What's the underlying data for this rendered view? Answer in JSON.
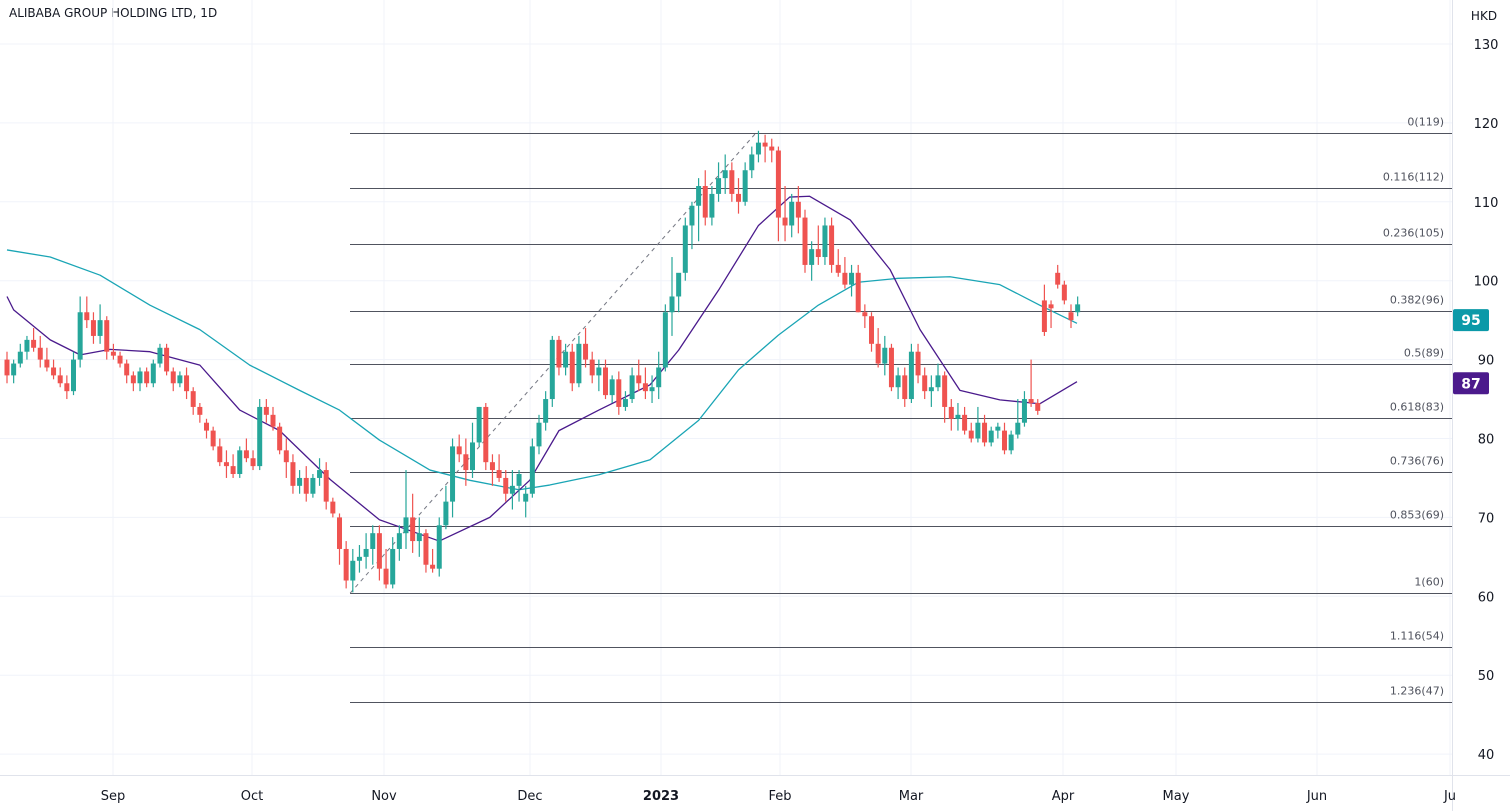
{
  "chart_data": {
    "type": "candlestick",
    "title": "ALIBABA GROUP HOLDING LTD, 1D",
    "currency": "HKD",
    "ylim": [
      35,
      134
    ],
    "y_ticks": [
      130,
      120,
      110,
      100,
      90,
      80,
      70,
      60,
      50,
      40
    ],
    "x_ticks": [
      "Sep",
      "Oct",
      "Nov",
      "Dec",
      "2023",
      "Feb",
      "Mar",
      "Apr",
      "May",
      "Jun",
      "Ju"
    ],
    "colors": {
      "up": "#26a69a",
      "down": "#ef5350",
      "ma_fast": "#4a1a8c",
      "ma_slow": "#1aa5b5",
      "fib": "#50535e",
      "grid": "#f0f3fa"
    },
    "candles_ohlc": [
      [
        90,
        91,
        87,
        88
      ],
      [
        88,
        90,
        87,
        89.5
      ],
      [
        89.5,
        92,
        89,
        91
      ],
      [
        91,
        93,
        90,
        92.5
      ],
      [
        92.5,
        94,
        91,
        91.5
      ],
      [
        91.5,
        93,
        89,
        90
      ],
      [
        90,
        91.5,
        88.5,
        89
      ],
      [
        89,
        90,
        87.5,
        88
      ],
      [
        88,
        89,
        86.5,
        87
      ],
      [
        87,
        88,
        85,
        86
      ],
      [
        86,
        91,
        85.5,
        90
      ],
      [
        90,
        98,
        89,
        96
      ],
      [
        96,
        98,
        94,
        95
      ],
      [
        95,
        96,
        92,
        93
      ],
      [
        93,
        97,
        92,
        95
      ],
      [
        95,
        95.5,
        90,
        91
      ],
      [
        91,
        92,
        90,
        90.5
      ],
      [
        90.5,
        91,
        89,
        89.5
      ],
      [
        89.5,
        90,
        87,
        88
      ],
      [
        88,
        88.5,
        86,
        87
      ],
      [
        87,
        89,
        86,
        88.5
      ],
      [
        88.5,
        89,
        86.5,
        87
      ],
      [
        87,
        90,
        86.5,
        89.5
      ],
      [
        89.5,
        92,
        89,
        91.5
      ],
      [
        91.5,
        92,
        88,
        88.5
      ],
      [
        88.5,
        89,
        86,
        87
      ],
      [
        87,
        88.5,
        86.5,
        88
      ],
      [
        88,
        89,
        85,
        86
      ],
      [
        86,
        86.5,
        83,
        84
      ],
      [
        84,
        84.5,
        82,
        83
      ],
      [
        82,
        82.5,
        80,
        81
      ],
      [
        81,
        81.5,
        78.5,
        79
      ],
      [
        79,
        80,
        76.5,
        77
      ],
      [
        77,
        78.5,
        75,
        76.5
      ],
      [
        76.5,
        78,
        75,
        75.5
      ],
      [
        75.5,
        79,
        75,
        78.5
      ],
      [
        78.5,
        80,
        77,
        77.5
      ],
      [
        77.5,
        78.5,
        76,
        76.5
      ],
      [
        76.5,
        85,
        76,
        84
      ],
      [
        84,
        85,
        82,
        83
      ],
      [
        83,
        84,
        81,
        81.5
      ],
      [
        81.5,
        82,
        78,
        78.5
      ],
      [
        78.5,
        80,
        75,
        77
      ],
      [
        77,
        78,
        73,
        74
      ],
      [
        74,
        76,
        73,
        75
      ],
      [
        75,
        76.5,
        72,
        73
      ],
      [
        73,
        75.5,
        72.5,
        75
      ],
      [
        75,
        77.5,
        74,
        76
      ],
      [
        76,
        77,
        71,
        72
      ],
      [
        72,
        72.5,
        70,
        70.5
      ],
      [
        70,
        70.5,
        64,
        66
      ],
      [
        66,
        67,
        61,
        62
      ],
      [
        62,
        66,
        60.5,
        64.5
      ],
      [
        64.5,
        66.5,
        63,
        65
      ],
      [
        65,
        68,
        63.5,
        66
      ],
      [
        66,
        69,
        64,
        68
      ],
      [
        68,
        69,
        62,
        63.5
      ],
      [
        63.5,
        66,
        61,
        61.5
      ],
      [
        61.5,
        67.5,
        61,
        66
      ],
      [
        66,
        69,
        64.5,
        68
      ],
      [
        68,
        76,
        66,
        70
      ],
      [
        70,
        73,
        65.5,
        67
      ],
      [
        67,
        70,
        65,
        68
      ],
      [
        68,
        68.5,
        63,
        64
      ],
      [
        64,
        66,
        63,
        63.5
      ],
      [
        63.5,
        70,
        62.5,
        69
      ],
      [
        69,
        74,
        68.5,
        72
      ],
      [
        72,
        80,
        70,
        79
      ],
      [
        79,
        80.5,
        77,
        78
      ],
      [
        78,
        80,
        74,
        76
      ],
      [
        76,
        82,
        75,
        79.5
      ],
      [
        79.5,
        84,
        79,
        84
      ],
      [
        84,
        84.5,
        76,
        77
      ],
      [
        77,
        78,
        74,
        76
      ],
      [
        76,
        78,
        74.5,
        75
      ],
      [
        75,
        76,
        72,
        73
      ],
      [
        73,
        76,
        71,
        74
      ],
      [
        74,
        76,
        72,
        75.5
      ],
      [
        72,
        74,
        70,
        73
      ],
      [
        73,
        80,
        72.5,
        79
      ],
      [
        79,
        83,
        78,
        82
      ],
      [
        82,
        86,
        81,
        85
      ],
      [
        85,
        93,
        84,
        92.5
      ],
      [
        92.5,
        93,
        88,
        89
      ],
      [
        89,
        92,
        88,
        91
      ],
      [
        91,
        92,
        86,
        87
      ],
      [
        87,
        93,
        86.5,
        92
      ],
      [
        92,
        94,
        89,
        90
      ],
      [
        90,
        91,
        87,
        88
      ],
      [
        88,
        90,
        86,
        89
      ],
      [
        89,
        90,
        85,
        85.5
      ],
      [
        85.5,
        88,
        84.5,
        87.5
      ],
      [
        87.5,
        88.5,
        83,
        84
      ],
      [
        84,
        86,
        83.5,
        85
      ],
      [
        85,
        89,
        84.5,
        88
      ],
      [
        88,
        90,
        86,
        87
      ],
      [
        87,
        89,
        85,
        86
      ],
      [
        86,
        88,
        84.5,
        86.5
      ],
      [
        86.5,
        91,
        85,
        89
      ],
      [
        89,
        97,
        88.5,
        96
      ],
      [
        96,
        103,
        93,
        98
      ],
      [
        98,
        100,
        96,
        101
      ],
      [
        101,
        108,
        100,
        107
      ],
      [
        107,
        110,
        104,
        109.5
      ],
      [
        109.5,
        113,
        105,
        112
      ],
      [
        112,
        114,
        107,
        108
      ],
      [
        108,
        112,
        107,
        111
      ],
      [
        111,
        115,
        110,
        113
      ],
      [
        113,
        116,
        111,
        114
      ],
      [
        114,
        115,
        110,
        111
      ],
      [
        111,
        113,
        108.5,
        110
      ],
      [
        110,
        115,
        109.5,
        114
      ],
      [
        114,
        117,
        113,
        116
      ],
      [
        116,
        119,
        115,
        117.5
      ],
      [
        117.5,
        118.5,
        115,
        117
      ],
      [
        117,
        118,
        115,
        116.5
      ],
      [
        116.5,
        117,
        105,
        108
      ],
      [
        108,
        112,
        105,
        107
      ],
      [
        107,
        111,
        105.5,
        110
      ],
      [
        110,
        112,
        106,
        108
      ],
      [
        108,
        109,
        101,
        102
      ],
      [
        102,
        105,
        100,
        104
      ],
      [
        104,
        107,
        102,
        103
      ],
      [
        103,
        108,
        102,
        107
      ],
      [
        107,
        108,
        101,
        102
      ],
      [
        102,
        104,
        100.5,
        101
      ],
      [
        101,
        103,
        99,
        99.5
      ],
      [
        99.5,
        102,
        98,
        101
      ],
      [
        101,
        102,
        96,
        96
      ],
      [
        96,
        97,
        94,
        95.5
      ],
      [
        95.5,
        96,
        91,
        92
      ],
      [
        92,
        94,
        89,
        89.5
      ],
      [
        89.5,
        93,
        88,
        91.5
      ],
      [
        91.5,
        92,
        86,
        86.5
      ],
      [
        86.5,
        89,
        85,
        88
      ],
      [
        88,
        89,
        84,
        85
      ],
      [
        85,
        92,
        84.5,
        91
      ],
      [
        91,
        92,
        87,
        88
      ],
      [
        88,
        89,
        85,
        86
      ],
      [
        86,
        88,
        84,
        86.5
      ],
      [
        86.5,
        89.5,
        86,
        88
      ],
      [
        88,
        88.5,
        82,
        84
      ],
      [
        84,
        85,
        81,
        82.5
      ],
      [
        82.5,
        84.5,
        81,
        83
      ],
      [
        83,
        84,
        80.5,
        81
      ],
      [
        81,
        82,
        79.5,
        80
      ],
      [
        80,
        84,
        79.5,
        82
      ],
      [
        82,
        83,
        79,
        79.5
      ],
      [
        79.5,
        81.5,
        79,
        81
      ],
      [
        81,
        82,
        80,
        81.5
      ],
      [
        81,
        82,
        78,
        78.5
      ],
      [
        78.5,
        81,
        78,
        80.5
      ],
      [
        80.5,
        85,
        80,
        82
      ],
      [
        82,
        86,
        81.5,
        85
      ],
      [
        85,
        90,
        84,
        84.5
      ],
      [
        84.5,
        85,
        83,
        83.5
      ],
      [
        97.5,
        99.5,
        93,
        93.5
      ],
      [
        97,
        97.5,
        94,
        96.5
      ],
      [
        101,
        102,
        99,
        99.5
      ],
      [
        99.5,
        100,
        97,
        97.5
      ],
      [
        96,
        97,
        94,
        95
      ],
      [
        96,
        98,
        95.5,
        97
      ]
    ],
    "ma_fast_points": [
      [
        0,
        98
      ],
      [
        1,
        96.3
      ],
      [
        6.5,
        92.5
      ],
      [
        11,
        90.6
      ],
      [
        15.5,
        91.3
      ],
      [
        21.5,
        91
      ],
      [
        29,
        89.3
      ],
      [
        35,
        83.6
      ],
      [
        41,
        81
      ],
      [
        48.6,
        74.8
      ],
      [
        56,
        69.7
      ],
      [
        65,
        67
      ],
      [
        72.6,
        70
      ],
      [
        78.6,
        74.7
      ],
      [
        83,
        81
      ],
      [
        89,
        83.6
      ],
      [
        96.7,
        86.8
      ],
      [
        101,
        91.2
      ],
      [
        107,
        98.8
      ],
      [
        113,
        107
      ],
      [
        117.7,
        110.6
      ],
      [
        120.7,
        110.7
      ],
      [
        126.8,
        107.7
      ],
      [
        132.8,
        101.4
      ],
      [
        137.3,
        93.8
      ],
      [
        143.3,
        86.1
      ],
      [
        149.3,
        84.9
      ],
      [
        155.3,
        84.4
      ],
      [
        160.9,
        87.2
      ]
    ],
    "ma_slow_points": [
      [
        0,
        103.9
      ],
      [
        6.5,
        103
      ],
      [
        14,
        100.7
      ],
      [
        21.5,
        96.9
      ],
      [
        29,
        93.8
      ],
      [
        36.5,
        89.3
      ],
      [
        44,
        86.1
      ],
      [
        50,
        83.6
      ],
      [
        56,
        79.8
      ],
      [
        63.6,
        76
      ],
      [
        69.6,
        74.7
      ],
      [
        77,
        73.5
      ],
      [
        81.6,
        74.1
      ],
      [
        89,
        75.4
      ],
      [
        96.7,
        77.3
      ],
      [
        104,
        82.3
      ],
      [
        110,
        88.7
      ],
      [
        116,
        93.1
      ],
      [
        122,
        96.9
      ],
      [
        128,
        99.8
      ],
      [
        134,
        100.3
      ],
      [
        141.8,
        100.5
      ],
      [
        149.3,
        99.5
      ],
      [
        155.3,
        96.9
      ],
      [
        160.9,
        94.6
      ]
    ],
    "last_values": {
      "ma_slow": "95",
      "ma_fast": "87"
    },
    "fib_levels": [
      {
        "label": "0(119)",
        "price": 118.7
      },
      {
        "label": "0.116(112)",
        "price": 111.75
      },
      {
        "label": "0.236(105)",
        "price": 104.65
      },
      {
        "label": "0.382(96)",
        "price": 96.2
      },
      {
        "label": "0.5(89)",
        "price": 89.4
      },
      {
        "label": "0.618(83)",
        "price": 82.6
      },
      {
        "label": "0.736(76)",
        "price": 75.75
      },
      {
        "label": "0.853(69)",
        "price": 68.9
      },
      {
        "label": "1(60)",
        "price": 60.4
      },
      {
        "label": "1.116(54)",
        "price": 53.6
      },
      {
        "label": "1.236(47)",
        "price": 46.6
      }
    ],
    "fib_trend": {
      "from": [
        51.6,
        60.4
      ],
      "to": [
        112.6,
        118.7
      ]
    }
  }
}
